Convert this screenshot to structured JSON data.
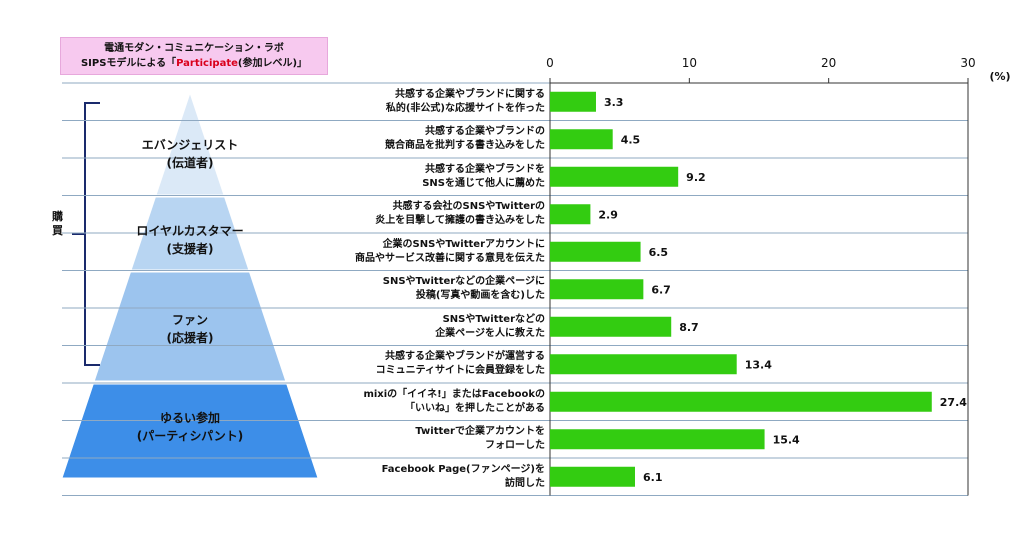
{
  "header": {
    "line1": "電通モダン・コミュニケーション・ラボ",
    "line2_prefix": "SIPSモデルによる「",
    "line2_accent": "Participate",
    "line2_suffix": "(参加レベル)」"
  },
  "bracket_label": "購買",
  "tiers": [
    {
      "label": "エバンジェリスト\n(伝道者)",
      "color": "#dbe9f7"
    },
    {
      "label": "ロイヤルカスタマー\n(支援者)",
      "color": "#b8d5f2"
    },
    {
      "label": "ファン\n(応援者)",
      "color": "#9cc4ee"
    },
    {
      "label": "ゆるい参加\n(パーティシパント)",
      "color": "#3d8ee8"
    }
  ],
  "colors": {
    "bar": "#33cc11",
    "grid": "#8fa9c2",
    "header_bg": "#f7c9ef",
    "accent": "#d9001b"
  },
  "chart_data": {
    "type": "bar",
    "orientation": "horizontal",
    "unit_label": "(%)",
    "xlim": [
      0,
      30
    ],
    "ticks": [
      0,
      10,
      20,
      30
    ],
    "categories": [
      "共感する企業やブランドに関する\n私的(非公式)な応援サイトを作った",
      "共感する企業やブランドの\n競合商品を批判する書き込みをした",
      "共感する企業やブランドを\nSNSを通じて他人に薦めた",
      "共感する会社のSNSやTwitterの\n炎上を目撃して擁護の書き込みをした",
      "企業のSNSやTwitterアカウントに\n商品やサービス改善に関する意見を伝えた",
      "SNSやTwitterなどの企業ページに\n投稿(写真や動画を含む)した",
      "SNSやTwitterなどの\n企業ページを人に教えた",
      "共感する企業やブランドが運営する\nコミュニティサイトに会員登録をした",
      "mixiの「イイネ!」またはFacebookの\n「いいね」を押したことがある",
      "Twitterで企業アカウントを\nフォローした",
      "Facebook Page(ファンページ)を\n訪問した"
    ],
    "values": [
      3.3,
      4.5,
      9.2,
      2.9,
      6.5,
      6.7,
      8.7,
      13.4,
      27.4,
      15.4,
      6.1
    ],
    "value_labels": [
      "3.3",
      "4.5",
      "9.2",
      "2.9",
      "6.5",
      "6.7",
      "8.7",
      "13.4",
      "27.4",
      "15.4",
      "6.1"
    ]
  }
}
